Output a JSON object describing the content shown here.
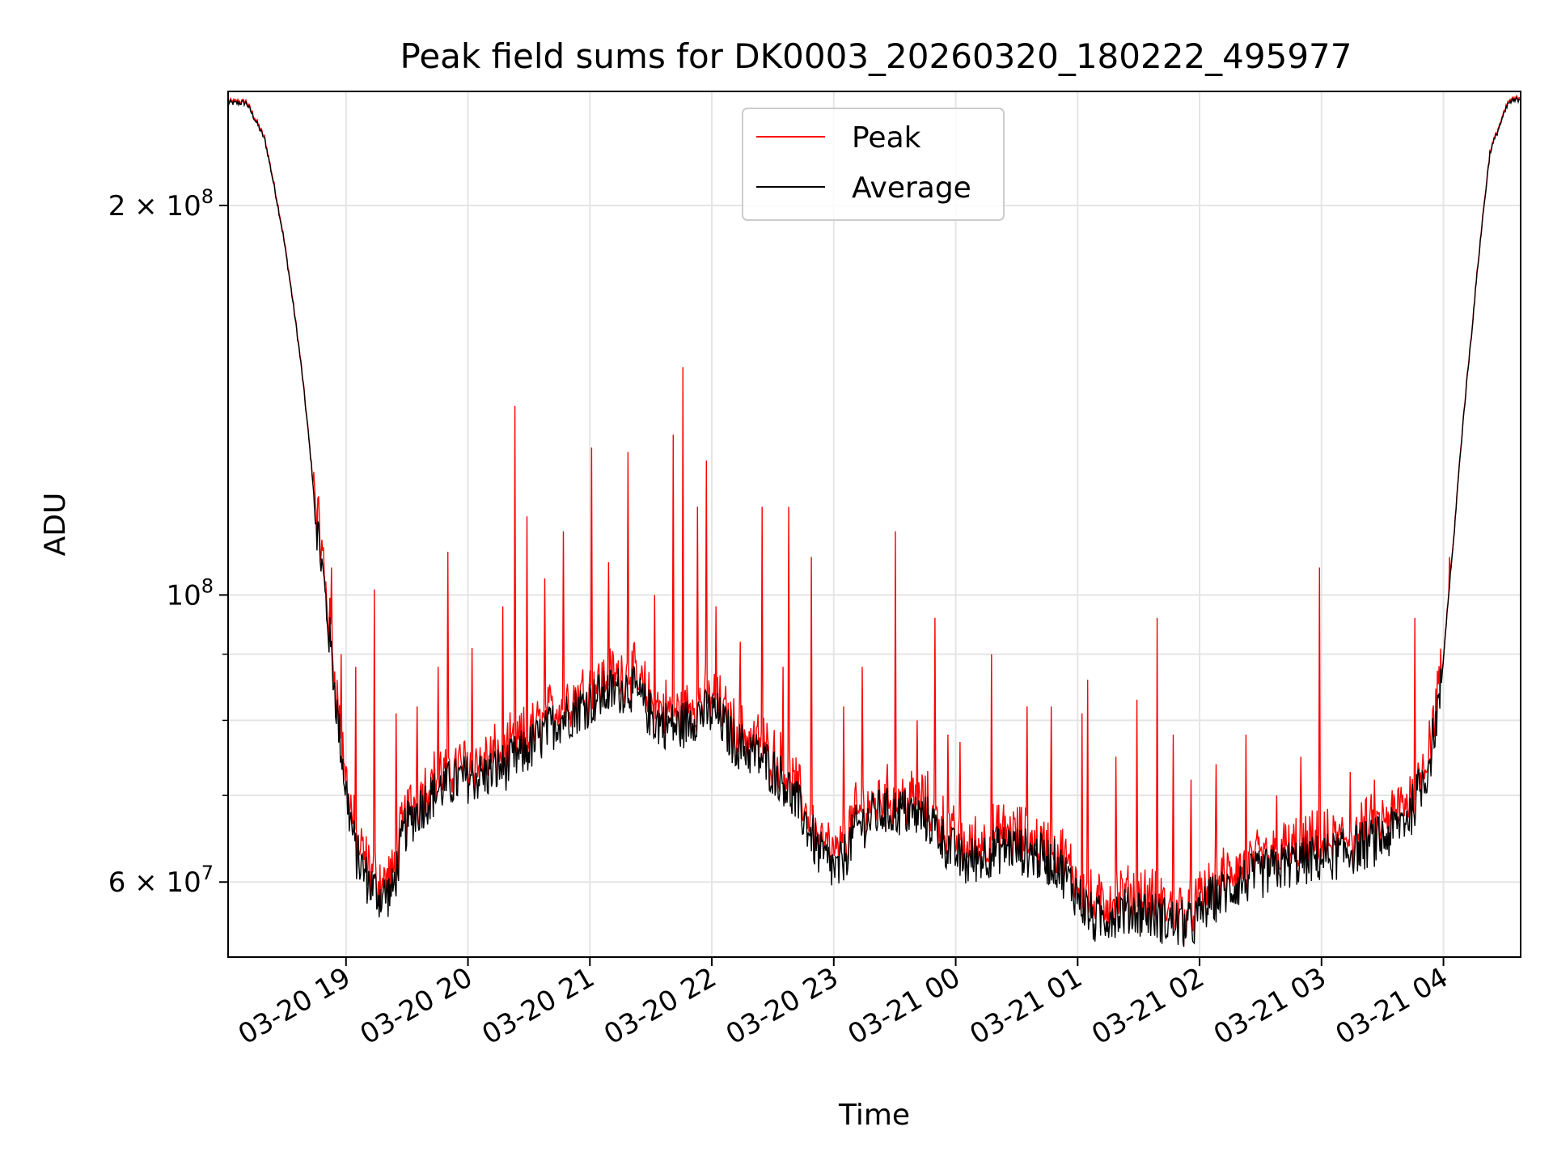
{
  "chart_data": {
    "type": "line",
    "title": "Peak field sums for DK0003_20260320_180222_495977",
    "xlabel": "Time",
    "ylabel": "ADU",
    "y_scale": "log",
    "x_range": [
      "03-20 18:02",
      "03-21 04:38"
    ],
    "ylim": [
      52500000,
      245000000
    ],
    "x_ticks": [
      "03-20 19",
      "03-20 20",
      "03-20 21",
      "03-20 22",
      "03-20 23",
      "03-21 00",
      "03-21 01",
      "03-21 02",
      "03-21 03",
      "03-21 04"
    ],
    "x_tick_hours": [
      0.967,
      1.967,
      2.967,
      3.967,
      4.967,
      5.967,
      6.967,
      7.967,
      8.967,
      9.967
    ],
    "y_ticks": [
      {
        "value": 200000000,
        "base": "2 × 10",
        "exp": "8"
      },
      {
        "value": 100000000,
        "base": "10",
        "exp": "8"
      },
      {
        "value": 60000000,
        "base": "6 × 10",
        "exp": "7"
      }
    ],
    "y_minor_ticks": [
      70000000,
      80000000,
      90000000
    ],
    "grid": true,
    "legend": {
      "position": "top-center",
      "entries": [
        "Peak",
        "Average"
      ]
    },
    "series": [
      {
        "name": "Peak",
        "color": "#ff0000"
      },
      {
        "name": "Average",
        "color": "#000000"
      }
    ],
    "elapsed_hours_axis_start": 0,
    "average_profile": [
      [
        0.0,
        240000000
      ],
      [
        0.15,
        240000000
      ],
      [
        0.3,
        225000000
      ],
      [
        0.45,
        190000000
      ],
      [
        0.6,
        150000000
      ],
      [
        0.72,
        115000000
      ],
      [
        0.82,
        95000000
      ],
      [
        0.9,
        80000000
      ],
      [
        0.97,
        70000000
      ],
      [
        1.05,
        63000000
      ],
      [
        1.15,
        60000000
      ],
      [
        1.25,
        58500000
      ],
      [
        1.35,
        59000000
      ],
      [
        1.45,
        66000000
      ],
      [
        1.6,
        69000000
      ],
      [
        1.75,
        71000000
      ],
      [
        1.9,
        72000000
      ],
      [
        2.1,
        72500000
      ],
      [
        2.3,
        74000000
      ],
      [
        2.5,
        76500000
      ],
      [
        2.7,
        80000000
      ],
      [
        2.9,
        82000000
      ],
      [
        3.1,
        84000000
      ],
      [
        3.3,
        85000000
      ],
      [
        3.5,
        80000000
      ],
      [
        3.7,
        79000000
      ],
      [
        3.85,
        81000000
      ],
      [
        4.0,
        81000000
      ],
      [
        4.15,
        77000000
      ],
      [
        4.35,
        75000000
      ],
      [
        4.55,
        72000000
      ],
      [
        4.7,
        68000000
      ],
      [
        4.85,
        63000000
      ],
      [
        5.0,
        61000000
      ],
      [
        5.15,
        66000000
      ],
      [
        5.35,
        68000000
      ],
      [
        5.55,
        68000000
      ],
      [
        5.75,
        67000000
      ],
      [
        5.9,
        64000000
      ],
      [
        6.05,
        62000000
      ],
      [
        6.2,
        63000000
      ],
      [
        6.4,
        64000000
      ],
      [
        6.6,
        63000000
      ],
      [
        6.8,
        62000000
      ],
      [
        6.95,
        59000000
      ],
      [
        7.1,
        56000000
      ],
      [
        7.3,
        57000000
      ],
      [
        7.5,
        57000000
      ],
      [
        7.7,
        56000000
      ],
      [
        7.9,
        55500000
      ],
      [
        8.05,
        58000000
      ],
      [
        8.3,
        60000000
      ],
      [
        8.5,
        61000000
      ],
      [
        8.7,
        62000000
      ],
      [
        8.9,
        62500000
      ],
      [
        9.1,
        63000000
      ],
      [
        9.3,
        64000000
      ],
      [
        9.5,
        65000000
      ],
      [
        9.7,
        68000000
      ],
      [
        9.85,
        74000000
      ],
      [
        9.95,
        85000000
      ],
      [
        10.05,
        110000000
      ],
      [
        10.2,
        160000000
      ],
      [
        10.35,
        220000000
      ],
      [
        10.5,
        240000000
      ],
      [
        10.6,
        242000000
      ]
    ],
    "peak_spikes": [
      [
        0.85,
        105000000
      ],
      [
        0.93,
        90000000
      ],
      [
        1.05,
        88000000
      ],
      [
        1.2,
        101000000
      ],
      [
        1.38,
        81000000
      ],
      [
        1.55,
        82000000
      ],
      [
        1.72,
        88000000
      ],
      [
        1.8,
        108000000
      ],
      [
        2.0,
        91000000
      ],
      [
        2.25,
        98000000
      ],
      [
        2.35,
        140000000
      ],
      [
        2.45,
        115000000
      ],
      [
        2.6,
        103000000
      ],
      [
        2.75,
        112000000
      ],
      [
        2.98,
        130000000
      ],
      [
        3.12,
        106000000
      ],
      [
        3.28,
        129000000
      ],
      [
        3.5,
        100000000
      ],
      [
        3.65,
        133000000
      ],
      [
        3.73,
        150000000
      ],
      [
        3.85,
        117000000
      ],
      [
        3.92,
        127000000
      ],
      [
        4.0,
        98000000
      ],
      [
        4.2,
        92000000
      ],
      [
        4.38,
        117000000
      ],
      [
        4.55,
        88000000
      ],
      [
        4.6,
        117000000
      ],
      [
        4.78,
        107000000
      ],
      [
        5.05,
        82000000
      ],
      [
        5.2,
        88000000
      ],
      [
        5.47,
        112000000
      ],
      [
        5.65,
        80000000
      ],
      [
        5.8,
        96000000
      ],
      [
        5.9,
        78000000
      ],
      [
        6.0,
        77000000
      ],
      [
        6.26,
        90000000
      ],
      [
        6.55,
        82000000
      ],
      [
        6.75,
        82000000
      ],
      [
        7.0,
        81000000
      ],
      [
        7.05,
        86000000
      ],
      [
        7.28,
        75000000
      ],
      [
        7.45,
        83000000
      ],
      [
        7.62,
        96000000
      ],
      [
        7.75,
        78000000
      ],
      [
        7.9,
        72000000
      ],
      [
        8.1,
        74000000
      ],
      [
        8.35,
        78000000
      ],
      [
        8.6,
        70000000
      ],
      [
        8.8,
        75000000
      ],
      [
        8.95,
        105000000
      ],
      [
        9.2,
        73000000
      ],
      [
        9.4,
        72000000
      ],
      [
        9.6,
        71000000
      ],
      [
        9.73,
        96000000
      ],
      [
        9.85,
        80000000
      ],
      [
        10.02,
        107000000
      ]
    ]
  }
}
